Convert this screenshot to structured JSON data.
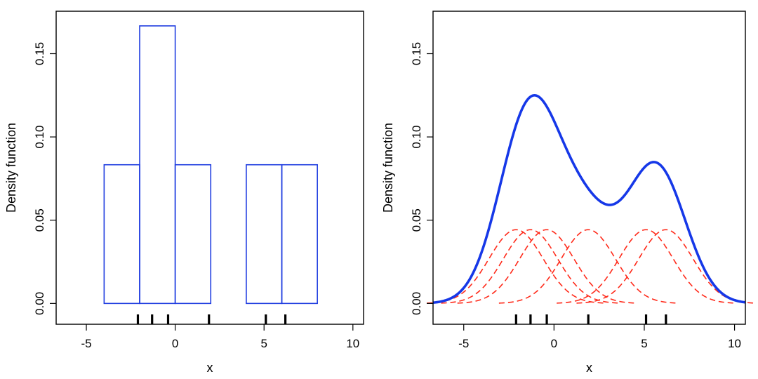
{
  "colors": {
    "histogram": "#1f3de0",
    "density": "#1638e8",
    "kernels": "#ff2a1a",
    "axis": "#000000"
  },
  "chart_data": [
    {
      "type": "bar",
      "subtype": "histogram",
      "xlabel": "x",
      "ylabel": "Density function",
      "xlim": [
        -6.7,
        10.6
      ],
      "ylim": [
        -0.0125,
        0.1755
      ],
      "xticks": [
        -5,
        0,
        5,
        10
      ],
      "yticks": [
        0.0,
        0.05,
        0.1,
        0.15
      ],
      "xtick_labels": [
        "-5",
        "0",
        "5",
        "10"
      ],
      "ytick_labels": [
        "0.00",
        "0.05",
        "0.10",
        "0.15"
      ],
      "bins": [
        {
          "from": -4,
          "to": -2,
          "density": 0.0833
        },
        {
          "from": -2,
          "to": 0,
          "density": 0.1667
        },
        {
          "from": 0,
          "to": 2,
          "density": 0.0833
        },
        {
          "from": 2,
          "to": 4,
          "density": 0.0
        },
        {
          "from": 4,
          "to": 6,
          "density": 0.0833
        },
        {
          "from": 6,
          "to": 8,
          "density": 0.0833
        }
      ],
      "rug": [
        -2.1,
        -1.3,
        -0.4,
        1.9,
        5.1,
        6.2
      ],
      "grid": false,
      "legend": "none"
    },
    {
      "type": "line",
      "subtype": "kernel-density",
      "xlabel": "x",
      "ylabel": "Density function",
      "xlim": [
        -6.7,
        10.6
      ],
      "ylim": [
        -0.0125,
        0.1755
      ],
      "xticks": [
        -5,
        0,
        5,
        10
      ],
      "yticks": [
        0.0,
        0.05,
        0.1,
        0.15
      ],
      "xtick_labels": [
        "-5",
        "0",
        "5",
        "10"
      ],
      "ytick_labels": [
        "0.00",
        "0.05",
        "0.10",
        "0.15"
      ],
      "observations": [
        -2.1,
        -1.3,
        -0.4,
        1.9,
        5.1,
        6.2
      ],
      "bandwidth": 1.5,
      "kernel_peak": 0.0443,
      "density_peaks": [
        {
          "x": -1.1,
          "y": 0.125
        },
        {
          "x": 5.5,
          "y": 0.085
        }
      ],
      "density_local_min": {
        "x": 3.1,
        "y": 0.059
      },
      "rug": [
        -2.1,
        -1.3,
        -0.4,
        1.9,
        5.1,
        6.2
      ],
      "grid": false,
      "legend": "none"
    }
  ]
}
